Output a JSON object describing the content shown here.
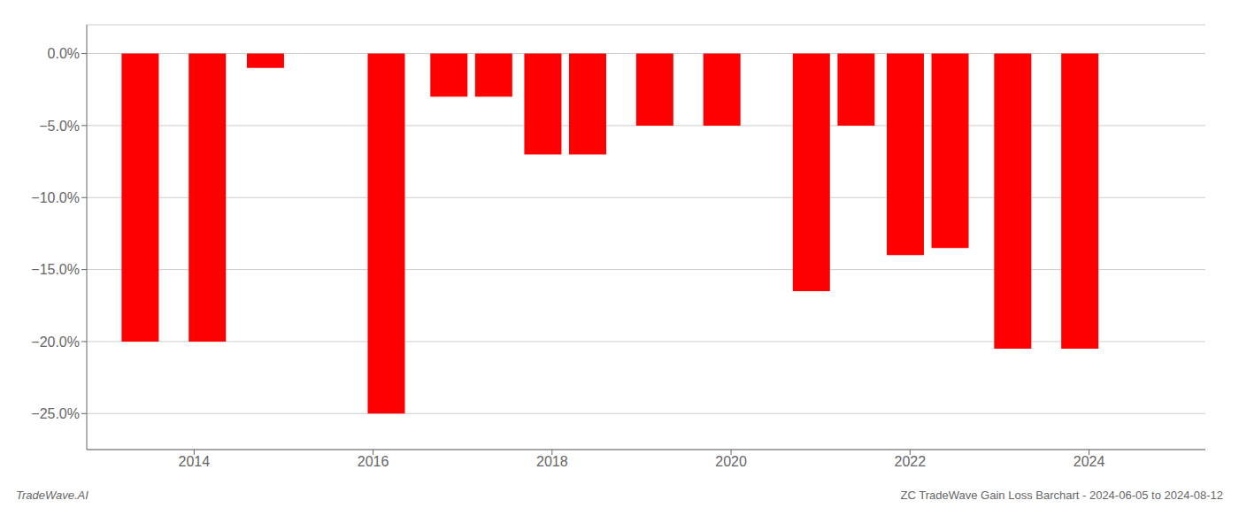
{
  "chart_data": {
    "type": "bar",
    "title": "ZC TradeWave Gain Loss Barchart - 2024-06-05 to 2024-08-12",
    "annotation": "TradeWave.AI",
    "x": [
      2013.4,
      2014.15,
      2014.8,
      2016.15,
      2016.85,
      2017.35,
      2017.9,
      2018.4,
      2019.15,
      2019.9,
      2020.9,
      2021.4,
      2021.95,
      2022.45,
      2023.15,
      2023.9
    ],
    "values": [
      -20.0,
      -20.0,
      -1.0,
      -25.0,
      -3.0,
      -3.0,
      -7.0,
      -7.0,
      -5.0,
      -5.0,
      -16.5,
      -5.0,
      -14.0,
      -13.5,
      -20.5,
      -20.5
    ],
    "color": "#ff0000",
    "xlim": [
      2012.8,
      2025.3
    ],
    "xticks": [
      2014,
      2016,
      2018,
      2020,
      2022,
      2024
    ],
    "ylim": [
      -27.5,
      2.0
    ],
    "yticks": [
      {
        "value": 0.0,
        "label": "0.0%"
      },
      {
        "value": -5.0,
        "label": "−5.0%"
      },
      {
        "value": -10.0,
        "label": "−10.0%"
      },
      {
        "value": -15.0,
        "label": "−15.0%"
      },
      {
        "value": -20.0,
        "label": "−20.0%"
      },
      {
        "value": -25.0,
        "label": "−25.0%"
      }
    ],
    "grid": true
  }
}
